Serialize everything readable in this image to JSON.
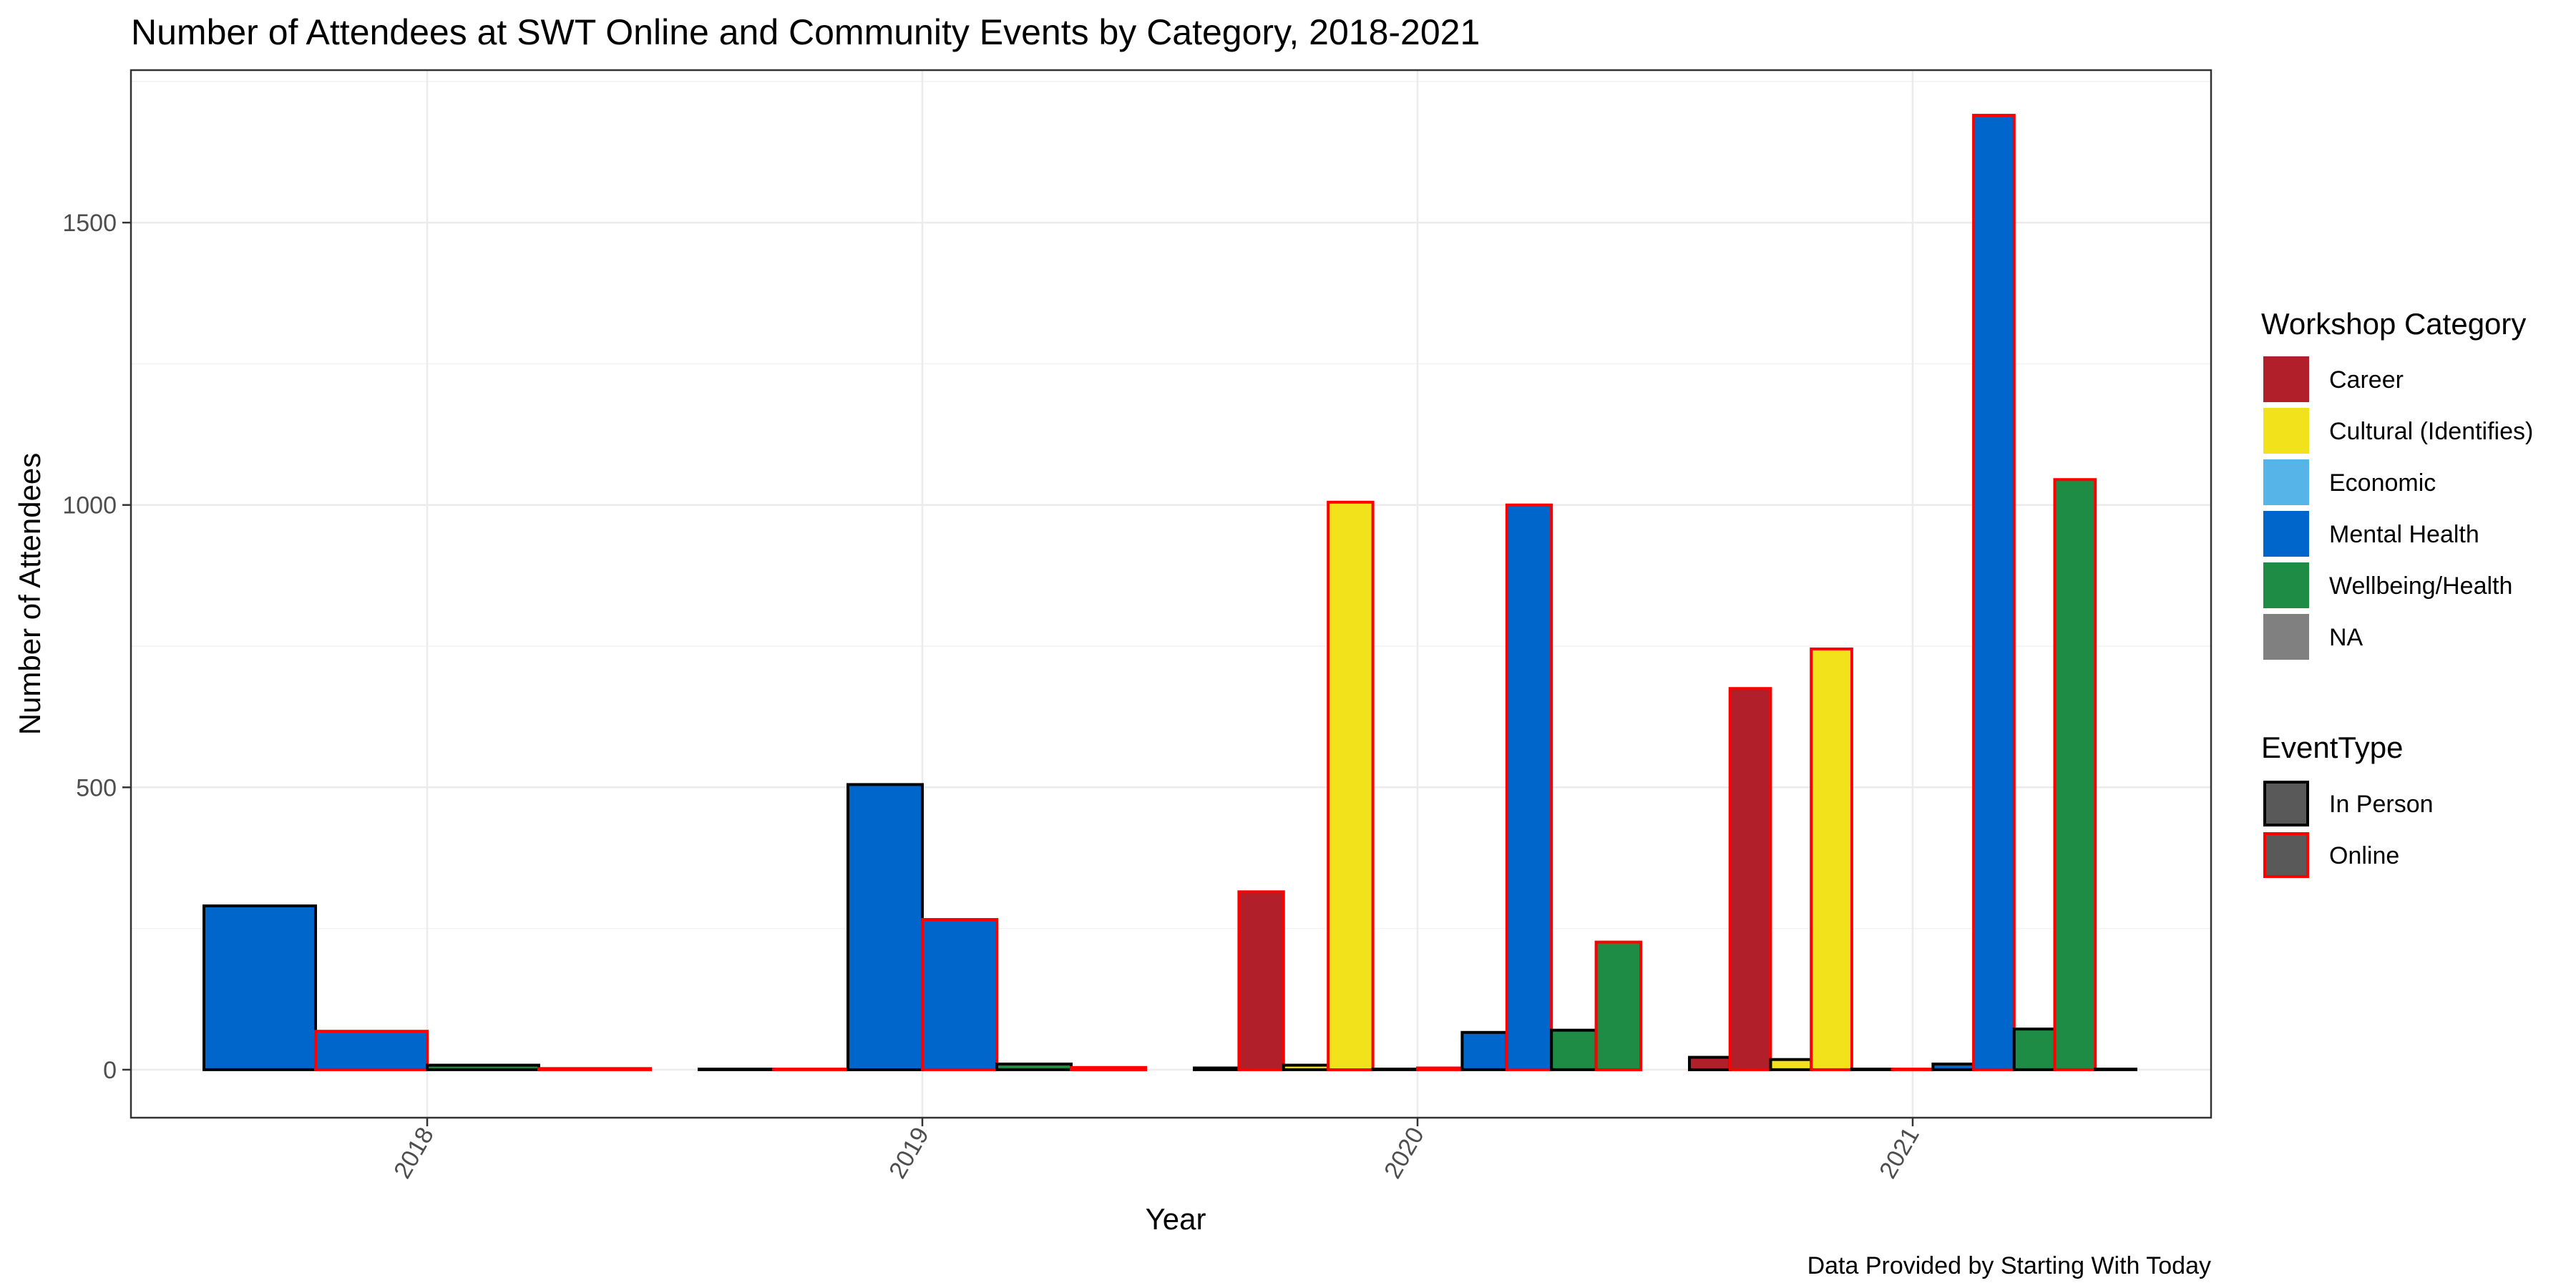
{
  "chart_data": {
    "type": "bar",
    "title": "Number of Attendees at SWT Online and Community Events by Category, 2018-2021",
    "xlabel": "Year",
    "ylabel": "Number of Attendees",
    "caption": "Data Provided by Starting With Today",
    "categories": [
      "2018",
      "2019",
      "2020",
      "2021"
    ],
    "ylim": [
      -85,
      1770
    ],
    "yticks": [
      0,
      500,
      1000,
      1500
    ],
    "grid": true,
    "legend_position": "right",
    "fill_legend": {
      "title": "Workshop Category",
      "items": [
        {
          "label": "Career",
          "color": "#B01F2A"
        },
        {
          "label": "Cultural (Identifies)",
          "color": "#F2E21C"
        },
        {
          "label": "Economic",
          "color": "#56B4E9"
        },
        {
          "label": "Mental Health",
          "color": "#0066CC"
        },
        {
          "label": "Wellbeing/Health",
          "color": "#1E8C45"
        },
        {
          "label": "NA",
          "color": "#808080"
        }
      ]
    },
    "outline_legend": {
      "title": "EventType",
      "items": [
        {
          "label": "In Person",
          "color": "#000000"
        },
        {
          "label": "Online",
          "color": "#FF0000"
        }
      ]
    },
    "bars": [
      {
        "year": "2018",
        "category": "Mental Health",
        "event_type": "In Person",
        "value": 290
      },
      {
        "year": "2018",
        "category": "Mental Health",
        "event_type": "Online",
        "value": 68
      },
      {
        "year": "2018",
        "category": "Wellbeing/Health",
        "event_type": "In Person",
        "value": 8
      },
      {
        "year": "2018",
        "category": "Wellbeing/Health",
        "event_type": "Online",
        "value": 2
      },
      {
        "year": "2019",
        "category": "Economic",
        "event_type": "In Person",
        "value": 1
      },
      {
        "year": "2019",
        "category": "Economic",
        "event_type": "Online",
        "value": 1
      },
      {
        "year": "2019",
        "category": "Mental Health",
        "event_type": "In Person",
        "value": 505
      },
      {
        "year": "2019",
        "category": "Mental Health",
        "event_type": "Online",
        "value": 266
      },
      {
        "year": "2019",
        "category": "Wellbeing/Health",
        "event_type": "In Person",
        "value": 10
      },
      {
        "year": "2019",
        "category": "Wellbeing/Health",
        "event_type": "Online",
        "value": 4
      },
      {
        "year": "2020",
        "category": "Career",
        "event_type": "In Person",
        "value": 3
      },
      {
        "year": "2020",
        "category": "Career",
        "event_type": "Online",
        "value": 315
      },
      {
        "year": "2020",
        "category": "Cultural (Identifies)",
        "event_type": "In Person",
        "value": 8
      },
      {
        "year": "2020",
        "category": "Cultural (Identifies)",
        "event_type": "Online",
        "value": 1005
      },
      {
        "year": "2020",
        "category": "Economic",
        "event_type": "In Person",
        "value": 1
      },
      {
        "year": "2020",
        "category": "Economic",
        "event_type": "Online",
        "value": 3
      },
      {
        "year": "2020",
        "category": "Mental Health",
        "event_type": "In Person",
        "value": 66
      },
      {
        "year": "2020",
        "category": "Mental Health",
        "event_type": "Online",
        "value": 1000
      },
      {
        "year": "2020",
        "category": "Wellbeing/Health",
        "event_type": "In Person",
        "value": 70
      },
      {
        "year": "2020",
        "category": "Wellbeing/Health",
        "event_type": "Online",
        "value": 226
      },
      {
        "year": "2021",
        "category": "Career",
        "event_type": "In Person",
        "value": 22
      },
      {
        "year": "2021",
        "category": "Career",
        "event_type": "Online",
        "value": 675
      },
      {
        "year": "2021",
        "category": "Cultural (Identifies)",
        "event_type": "In Person",
        "value": 18
      },
      {
        "year": "2021",
        "category": "Cultural (Identifies)",
        "event_type": "Online",
        "value": 745
      },
      {
        "year": "2021",
        "category": "Economic",
        "event_type": "In Person",
        "value": 1
      },
      {
        "year": "2021",
        "category": "Economic",
        "event_type": "Online",
        "value": 1
      },
      {
        "year": "2021",
        "category": "Mental Health",
        "event_type": "In Person",
        "value": 10
      },
      {
        "year": "2021",
        "category": "Mental Health",
        "event_type": "Online",
        "value": 1690
      },
      {
        "year": "2021",
        "category": "Wellbeing/Health",
        "event_type": "In Person",
        "value": 72
      },
      {
        "year": "2021",
        "category": "Wellbeing/Health",
        "event_type": "Online",
        "value": 1045
      },
      {
        "year": "2021",
        "category": "NA",
        "event_type": "In Person",
        "value": 1
      }
    ]
  }
}
